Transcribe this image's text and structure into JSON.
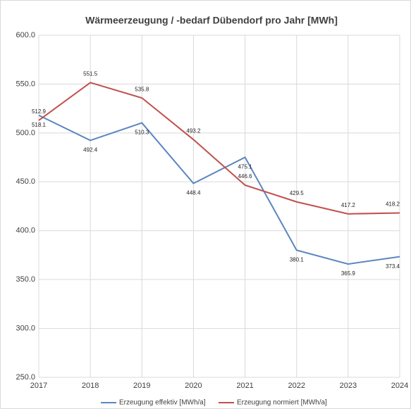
{
  "chart_data": {
    "type": "line",
    "title": "Wärmeerzeugung / -bedarf Dübendorf pro Jahr [MWh]",
    "x": [
      2017,
      2018,
      2019,
      2020,
      2021,
      2022,
      2023,
      2024
    ],
    "xlim": [
      2017,
      2024
    ],
    "xticks": [
      2017,
      2018,
      2019,
      2020,
      2021,
      2022,
      2023,
      2024
    ],
    "ylim": [
      250,
      600
    ],
    "yticks": [
      {
        "value": 250,
        "label": "250.0"
      },
      {
        "value": 300,
        "label": "300.0"
      },
      {
        "value": 350,
        "label": "350.0"
      },
      {
        "value": 400,
        "label": "400.0"
      },
      {
        "value": 450,
        "label": "450.0"
      },
      {
        "value": 500,
        "label": "500.0"
      },
      {
        "value": 550,
        "label": "550.0"
      },
      {
        "value": 600,
        "label": "600.0"
      }
    ],
    "grid": true,
    "legend": "bottom",
    "series": [
      {
        "name": "Erzeugung effektiv [MWh/a]",
        "color": "#5b86bf",
        "values": [
          518.1,
          492.4,
          510.3,
          448.4,
          475.1,
          380.1,
          365.9,
          373.4
        ]
      },
      {
        "name": "Erzeugung normiert [MWh/a]",
        "color": "#c0504d",
        "values": [
          512.9,
          551.5,
          535.8,
          493.2,
          446.6,
          429.5,
          417.2,
          418.2
        ]
      }
    ]
  }
}
